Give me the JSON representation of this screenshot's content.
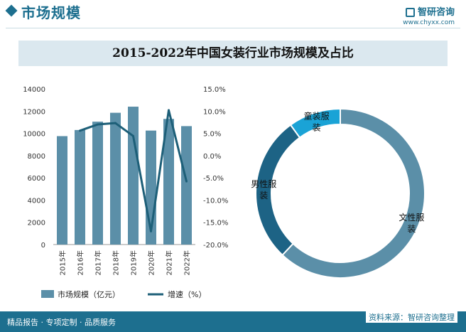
{
  "header": {
    "title": "市场规模",
    "brand": "智研咨询",
    "url": "www.chyxx.com"
  },
  "chart_title": "2015-2022年中国女装行业市场规模及占比",
  "chart_data": [
    {
      "type": "bar",
      "title": "2015-2022年中国女装行业市场规模及占比",
      "categories": [
        "2015年",
        "2016年",
        "2017年",
        "2018年",
        "2019年",
        "2020年",
        "2021年",
        "2022年"
      ],
      "series": [
        {
          "name": "市场规模（亿元）",
          "type": "bar",
          "axis": "left",
          "values": [
            9750,
            10300,
            11050,
            11850,
            12400,
            10250,
            11300,
            10650
          ]
        },
        {
          "name": "增速（%）",
          "type": "line",
          "axis": "right",
          "values": [
            null,
            5.6,
            7.0,
            7.3,
            4.4,
            -17.0,
            10.2,
            -5.8
          ]
        }
      ],
      "left_axis": {
        "ylim": [
          0,
          14000
        ],
        "ticks": [
          0,
          2000,
          4000,
          6000,
          8000,
          10000,
          12000,
          14000
        ]
      },
      "right_axis": {
        "ylim": [
          -20,
          15
        ],
        "ticks": [
          "15.0%",
          "10.0%",
          "5.0%",
          "0.0%",
          "-5.0%",
          "-10.0%",
          "-15.0%",
          "-20.0%"
        ]
      },
      "legend": [
        "市场规模（亿元）",
        "增速（%）"
      ],
      "legend_position": "bottom",
      "colors": {
        "bar": "#5b8fa8",
        "line": "#1d5f78"
      }
    },
    {
      "type": "pie",
      "subtype": "donut",
      "labels": [
        "文性服装",
        "男性服装",
        "童装服装"
      ],
      "values": [
        62,
        28,
        10
      ],
      "colors": [
        "#5b8fa8",
        "#1d6385",
        "#1aa3d6"
      ]
    }
  ],
  "footer": {
    "left": "精品报告 · 专项定制 · 品质服务",
    "source": "资料来源：智研咨询整理"
  }
}
